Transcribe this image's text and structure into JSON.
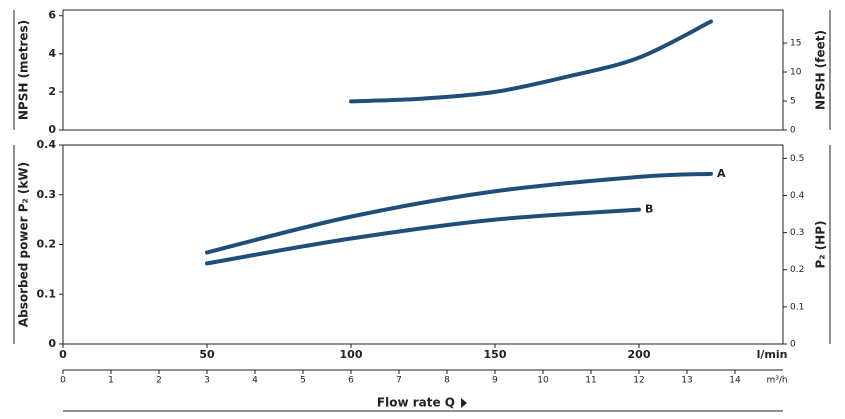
{
  "chart_data": [
    {
      "type": "line",
      "ylabel": "NPSH (metres)",
      "y2label": "NPSH (feet)",
      "xlim": [
        0,
        250
      ],
      "ylim": [
        0,
        6.3
      ],
      "yticks": [
        0,
        2,
        4,
        6
      ],
      "y2lim": [
        0,
        20.7
      ],
      "y2ticks": [
        0,
        5,
        10,
        15
      ],
      "series": [
        {
          "color": "#1f4e79",
          "x": [
            100,
            125,
            150,
            175,
            200,
            225
          ],
          "values": [
            1.5,
            1.65,
            2.0,
            2.8,
            3.8,
            5.7
          ]
        }
      ]
    },
    {
      "type": "line",
      "ylabel": "Absorbed power P₂ (kW)",
      "y2label": "P₂ (HP)",
      "xlim": [
        0,
        250
      ],
      "ylim": [
        0,
        0.4
      ],
      "yticks": [
        0,
        0.1,
        0.2,
        0.3,
        0.4
      ],
      "y2lim": [
        0,
        0.536
      ],
      "y2ticks": [
        0,
        0.1,
        0.2,
        0.3,
        0.4,
        0.5
      ],
      "xlabel": "l/min",
      "xticks": [
        0,
        50,
        100,
        150,
        200
      ],
      "x2label": "m³/h",
      "x2lim": [
        0,
        15
      ],
      "x2ticks": [
        0,
        1,
        2,
        3,
        4,
        5,
        6,
        7,
        8,
        9,
        10,
        11,
        12,
        13,
        14
      ],
      "xtitle": "Flow rate Q",
      "series": [
        {
          "name": "A",
          "color": "#1f4e79",
          "x": [
            50,
            100,
            150,
            200,
            225
          ],
          "values": [
            0.184,
            0.256,
            0.307,
            0.336,
            0.342
          ]
        },
        {
          "name": "B",
          "color": "#1f4e79",
          "x": [
            50,
            100,
            150,
            200
          ],
          "values": [
            0.162,
            0.212,
            0.25,
            0.27
          ]
        }
      ]
    }
  ]
}
